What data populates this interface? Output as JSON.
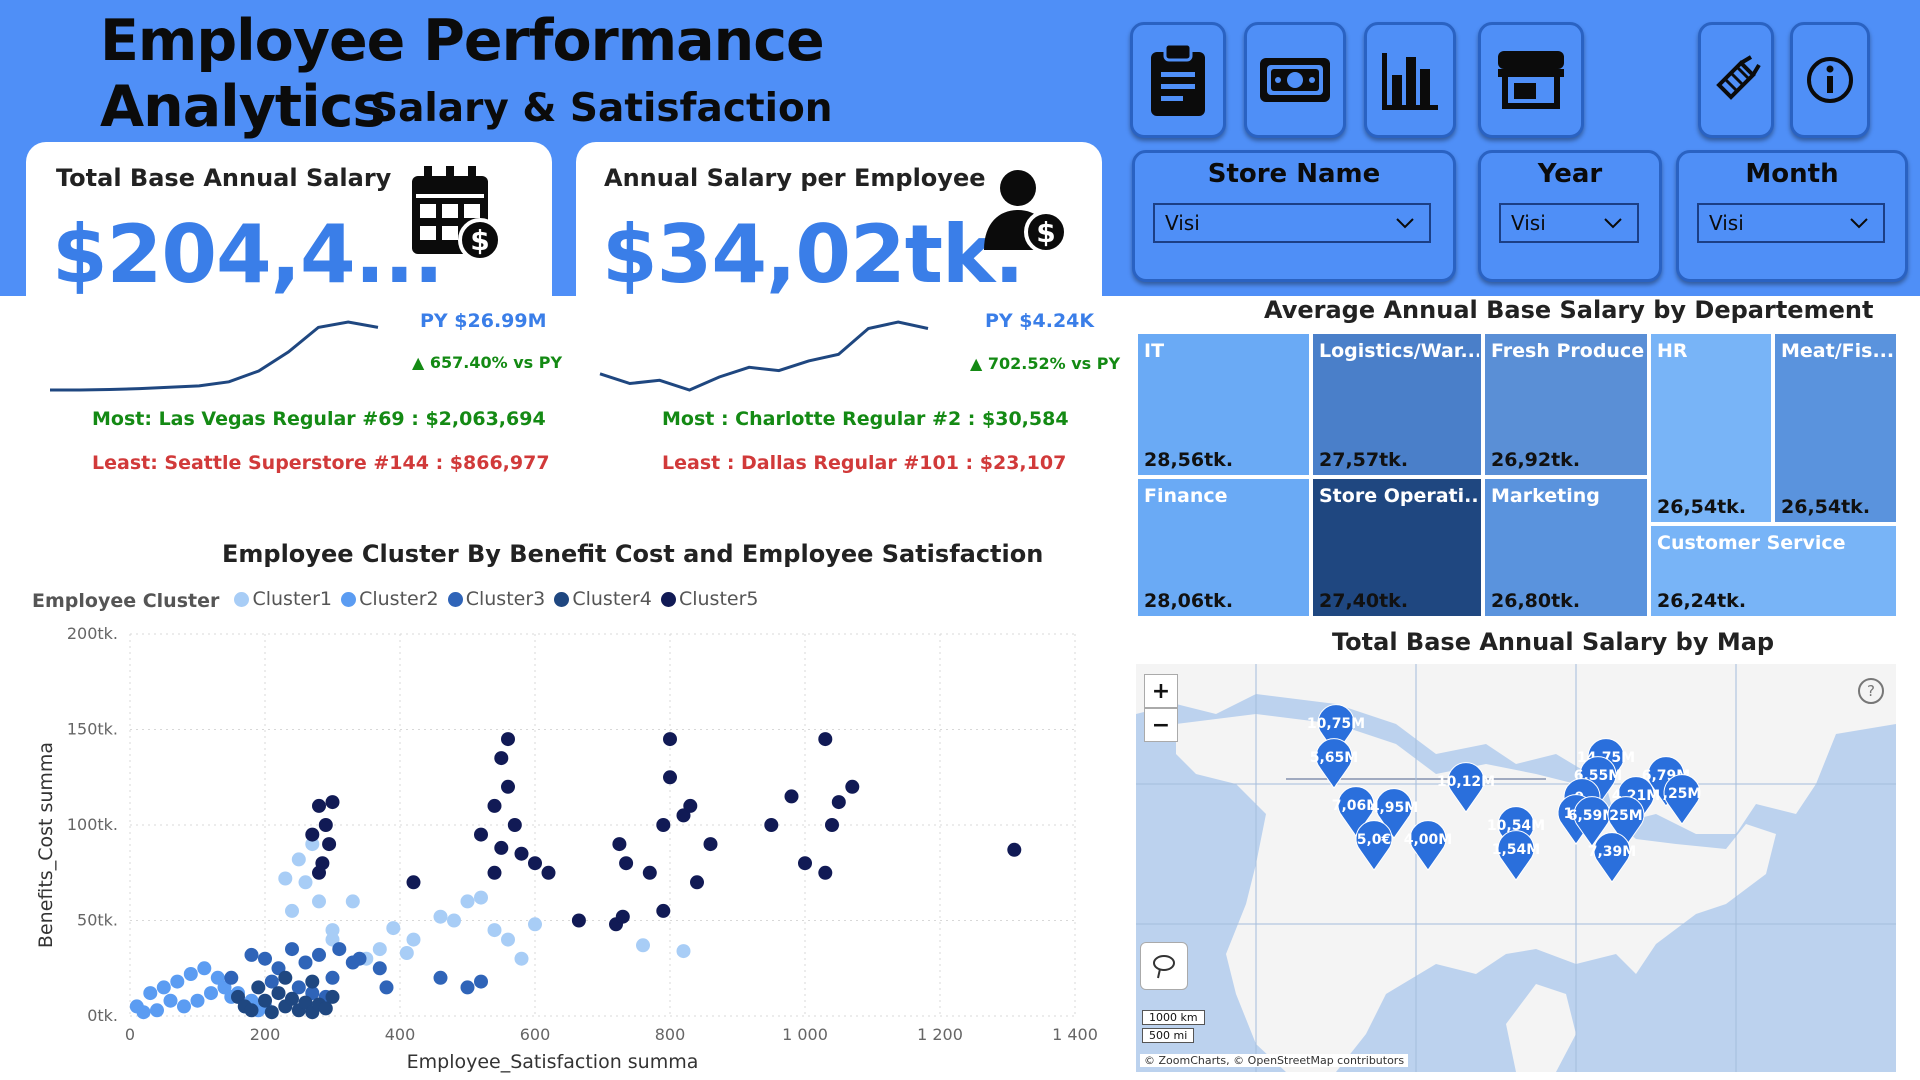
{
  "header": {
    "title": "Employee Performance Analytics",
    "subtitle": "Salary & Satisfaction"
  },
  "nav_buttons": [
    {
      "icon": "clipboard-icon"
    },
    {
      "icon": "money-icon"
    },
    {
      "icon": "bar-chart-icon"
    },
    {
      "icon": "store-icon"
    },
    {
      "icon": "clear-filters-icon"
    },
    {
      "icon": "info-icon"
    }
  ],
  "filters": [
    {
      "label": "Store Name",
      "value": "Visi"
    },
    {
      "label": "Year",
      "value": "Visi"
    },
    {
      "label": "Month",
      "value": "Visi"
    }
  ],
  "kpi": [
    {
      "label": "Total Base Annual Salary",
      "value": "$204,4...",
      "py": "PY $26.99M",
      "change": "▲ 657.40% vs PY",
      "most": "Most: Las Vegas Regular #69 : $2,063,694",
      "least": "Least: Seattle Superstore #144 : $866,977",
      "icon": "calendar-dollar-icon",
      "trend": [
        2,
        2,
        2.2,
        2.5,
        3,
        3.5,
        5,
        9,
        16,
        25,
        27,
        25
      ]
    },
    {
      "label": "Annual Salary per Employee",
      "value": "$34,02tk.",
      "py": "PY $4.24K",
      "change": "▲ 702.52% vs PY",
      "most": "Most : Charlotte Regular #2 : $30,584",
      "least": "Least : Dallas Regular #101 : $23,107",
      "icon": "person-dollar-icon",
      "trend": [
        6,
        3,
        4,
        1,
        5,
        8,
        7,
        10,
        12,
        20,
        22,
        20
      ]
    }
  ],
  "treemap": {
    "title": "Average Annual Base Salary by Departement",
    "cells": [
      {
        "name": "IT",
        "value": "28,56tk.",
        "color": "#6aaaf5"
      },
      {
        "name": "Logistics/War...",
        "value": "27,57tk.",
        "color": "#4a7fc9"
      },
      {
        "name": "Fresh Produce",
        "value": "26,92tk.",
        "color": "#5a8fd6"
      },
      {
        "name": "HR",
        "value": "26,54tk.",
        "color": "#78b4f7"
      },
      {
        "name": "Meat/Fis...",
        "value": "26,54tk.",
        "color": "#5a93dd"
      },
      {
        "name": "Finance",
        "value": "28,06tk.",
        "color": "#6aaaf5"
      },
      {
        "name": "Store Operati...",
        "value": "27,40tk.",
        "color": "#1f4780"
      },
      {
        "name": "Marketing",
        "value": "26,80tk.",
        "color": "#5a93dd"
      },
      {
        "name": "Customer Service",
        "value": "26,24tk.",
        "color": "#78b4f7"
      }
    ]
  },
  "map": {
    "title": "Total Base Annual Salary by Map",
    "zoom_in": "+",
    "zoom_out": "−",
    "help": "?",
    "scale_km": "1000 km",
    "scale_mi": "500 mi",
    "attribution": "© ZoomCharts, © OpenStreetMap contributors",
    "markers": [
      "10,75M",
      "5,65M",
      "10,12M",
      "7,06M",
      "4,95M",
      "5,0€",
      "4,00M",
      "10,54M",
      "1,54M",
      "14,75M",
      "6,55M",
      "6,79M",
      "9,",
      "4,21M",
      ",25M",
      "10,",
      "6,59M",
      "25M",
      "7,39M"
    ]
  },
  "chart_data": {
    "type": "scatter",
    "title": "Employee Cluster By Benefit Cost and Employee Satisfaction",
    "legend_title": "Employee Cluster",
    "xlabel": "Employee_Satisfaction summa",
    "ylabel": "Benefits_Cost summa",
    "xlim": [
      0,
      1400
    ],
    "ylim": [
      0,
      200000
    ],
    "x_ticks": [
      "0",
      "200",
      "400",
      "600",
      "800",
      "1 000",
      "1 200",
      "1 400"
    ],
    "y_ticks": [
      "0tk.",
      "50tk.",
      "100tk.",
      "150tk.",
      "200tk."
    ],
    "grid": true,
    "legend_position": "top-left",
    "series": [
      {
        "name": "Cluster1",
        "color": "#a8cdf6",
        "points": [
          [
            240,
            55000
          ],
          [
            260,
            70000
          ],
          [
            280,
            60000
          ],
          [
            300,
            45000
          ],
          [
            350,
            30000
          ],
          [
            330,
            60000
          ],
          [
            420,
            40000
          ],
          [
            460,
            52000
          ],
          [
            480,
            50000
          ],
          [
            500,
            60000
          ],
          [
            520,
            62000
          ],
          [
            540,
            45000
          ],
          [
            560,
            40000
          ],
          [
            580,
            30000
          ],
          [
            600,
            48000
          ],
          [
            760,
            37000
          ],
          [
            820,
            34000
          ],
          [
            370,
            35000
          ],
          [
            390,
            46000
          ],
          [
            410,
            33000
          ],
          [
            230,
            72000
          ],
          [
            250,
            82000
          ],
          [
            270,
            90000
          ],
          [
            300,
            40000
          ]
        ]
      },
      {
        "name": "Cluster2",
        "color": "#5b9cf2",
        "points": [
          [
            10,
            5000
          ],
          [
            30,
            12000
          ],
          [
            50,
            15000
          ],
          [
            70,
            18000
          ],
          [
            90,
            22000
          ],
          [
            110,
            25000
          ],
          [
            130,
            20000
          ],
          [
            150,
            10000
          ],
          [
            170,
            5000
          ],
          [
            190,
            3000
          ],
          [
            60,
            8000
          ],
          [
            80,
            5000
          ],
          [
            100,
            8000
          ],
          [
            120,
            12000
          ],
          [
            140,
            15000
          ],
          [
            160,
            12000
          ],
          [
            180,
            8000
          ],
          [
            200,
            5000
          ],
          [
            40,
            3000
          ],
          [
            20,
            2000
          ]
        ]
      },
      {
        "name": "Cluster3",
        "color": "#2f64b8",
        "points": [
          [
            150,
            20000
          ],
          [
            200,
            30000
          ],
          [
            220,
            25000
          ],
          [
            240,
            35000
          ],
          [
            260,
            28000
          ],
          [
            280,
            32000
          ],
          [
            300,
            20000
          ],
          [
            310,
            35000
          ],
          [
            340,
            30000
          ],
          [
            370,
            25000
          ],
          [
            380,
            15000
          ],
          [
            460,
            20000
          ],
          [
            500,
            15000
          ],
          [
            520,
            18000
          ],
          [
            180,
            32000
          ],
          [
            210,
            18000
          ],
          [
            250,
            15000
          ],
          [
            270,
            12000
          ],
          [
            290,
            10000
          ],
          [
            330,
            28000
          ]
        ]
      },
      {
        "name": "Cluster4",
        "color": "#1f4780",
        "points": [
          [
            160,
            10000
          ],
          [
            170,
            5000
          ],
          [
            180,
            3000
          ],
          [
            200,
            8000
          ],
          [
            210,
            2000
          ],
          [
            220,
            12000
          ],
          [
            230,
            5000
          ],
          [
            240,
            9000
          ],
          [
            250,
            3000
          ],
          [
            260,
            7000
          ],
          [
            270,
            2000
          ],
          [
            280,
            6000
          ],
          [
            290,
            4000
          ],
          [
            300,
            10000
          ],
          [
            190,
            15000
          ],
          [
            230,
            20000
          ],
          [
            270,
            18000
          ]
        ]
      },
      {
        "name": "Cluster5",
        "color": "#111a55",
        "points": [
          [
            280,
            110000
          ],
          [
            290,
            100000
          ],
          [
            300,
            112000
          ],
          [
            270,
            95000
          ],
          [
            285,
            80000
          ],
          [
            295,
            90000
          ],
          [
            280,
            75000
          ],
          [
            520,
            95000
          ],
          [
            540,
            110000
          ],
          [
            560,
            120000
          ],
          [
            550,
            135000
          ],
          [
            560,
            145000
          ],
          [
            570,
            100000
          ],
          [
            580,
            85000
          ],
          [
            600,
            80000
          ],
          [
            620,
            75000
          ],
          [
            420,
            70000
          ],
          [
            540,
            75000
          ],
          [
            550,
            88000
          ],
          [
            725,
            90000
          ],
          [
            735,
            80000
          ],
          [
            770,
            75000
          ],
          [
            790,
            100000
          ],
          [
            800,
            125000
          ],
          [
            800,
            145000
          ],
          [
            820,
            105000
          ],
          [
            830,
            110000
          ],
          [
            860,
            90000
          ],
          [
            980,
            115000
          ],
          [
            1030,
            145000
          ],
          [
            1050,
            112000
          ],
          [
            1070,
            120000
          ],
          [
            1040,
            100000
          ],
          [
            950,
            100000
          ],
          [
            1000,
            80000
          ],
          [
            1030,
            75000
          ],
          [
            1310,
            87000
          ],
          [
            665,
            50000
          ],
          [
            720,
            48000
          ],
          [
            730,
            52000
          ],
          [
            790,
            55000
          ],
          [
            840,
            70000
          ]
        ]
      }
    ]
  }
}
